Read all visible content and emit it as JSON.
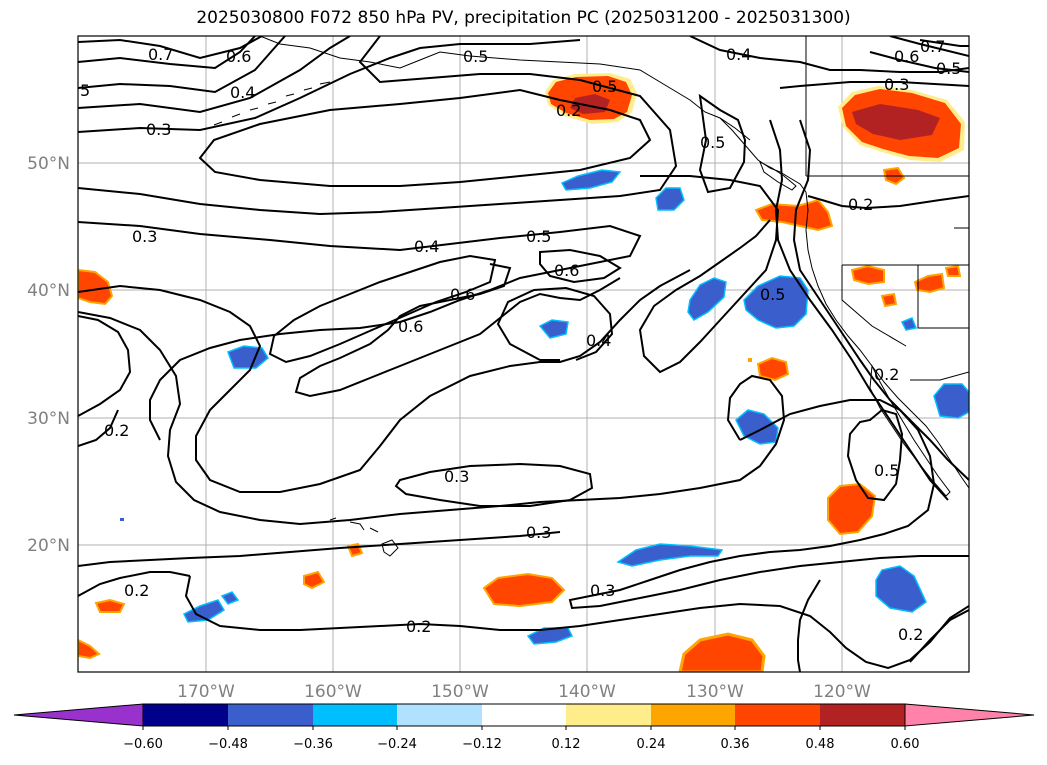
{
  "title": "2025030800 F072 850 hPa PV, precipitation PC (2025031200 - 2025031300)",
  "lat_labels": [
    "50°N",
    "40°N",
    "30°N",
    "20°N"
  ],
  "lon_labels": [
    "170°W",
    "160°W",
    "150°W",
    "140°W",
    "130°W",
    "120°W"
  ],
  "contour_labels": [
    "0.7",
    "0.6",
    "0.5",
    "0.4",
    "0.3",
    "0.2",
    "0.2",
    "0.5",
    "0.4",
    "0.6",
    "0.7",
    "0.5",
    "0.3",
    "0.5",
    "0.3",
    "0.4",
    "0.5",
    "0.6",
    "0.6",
    "0.6",
    "0.4",
    "0.5",
    "0.2",
    "0.3",
    "0.3",
    "0.2",
    "0.3",
    "0.2",
    "0.5",
    "0.2",
    "0.2",
    "5"
  ],
  "colorbar": {
    "ticks": [
      "−0.60",
      "−0.48",
      "−0.36",
      "−0.24",
      "−0.12",
      "0.12",
      "0.24",
      "0.36",
      "0.48",
      "0.60"
    ],
    "colors": [
      "#9932cc",
      "#00008b",
      "#3a5fcd",
      "#00bfff",
      "#b0e2ff",
      "#ffffff",
      "#ffec8b",
      "#ffa500",
      "#ff4500",
      "#b22222",
      "#ff82ab"
    ]
  },
  "palette": {
    "dark_red": "#b22222",
    "red_orange": "#ff4500",
    "orange": "#ffa500",
    "yellow": "#ffec8b",
    "light_blue": "#b0e2ff",
    "sky_blue": "#00bfff",
    "royal_blue": "#3a5fcd"
  }
}
